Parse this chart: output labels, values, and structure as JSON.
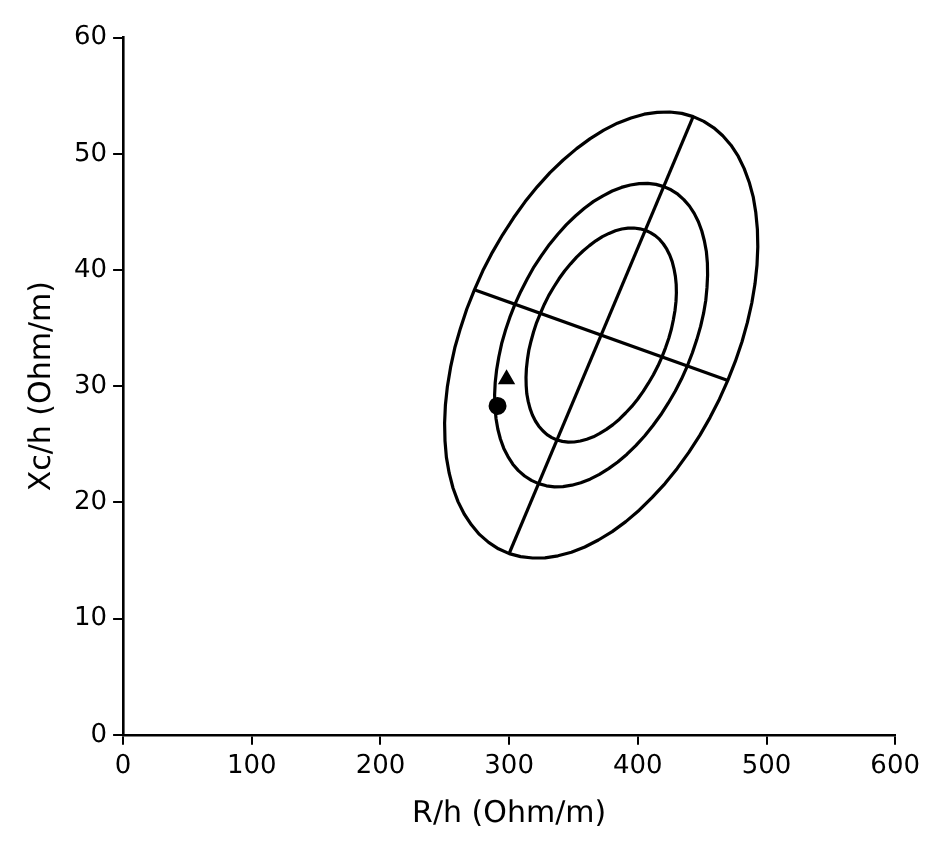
{
  "chart_data": {
    "type": "line",
    "xlabel": "R/h (Ohm/m)",
    "ylabel": "Xc/h (Ohm/m)",
    "xlim": [
      0,
      600
    ],
    "xticks": [
      0,
      100,
      200,
      300,
      400,
      500,
      600
    ],
    "ylim": [
      0,
      60
    ],
    "yticks": [
      0,
      10,
      20,
      30,
      40,
      50,
      60
    ],
    "marker": "none",
    "line_style": "solid",
    "legend": false,
    "series": [
      {
        "type": "line",
        "color": "#000000",
        "x": [
          300,
          443
        ],
        "values": [
          15.6,
          53.2
        ]
      },
      {
        "type": "line",
        "color": "#000000",
        "x": [
          273,
          470
        ],
        "values": [
          38.3,
          30.5
        ]
      },
      {
        "type": "scatter",
        "color": "#000000",
        "marker": "circle",
        "x": [
          291
        ],
        "values": [
          28.3
        ]
      },
      {
        "type": "scatter",
        "color": "#000000",
        "marker": "triangle",
        "x": [
          298
        ],
        "values": [
          30.6
        ]
      }
    ]
  }
}
